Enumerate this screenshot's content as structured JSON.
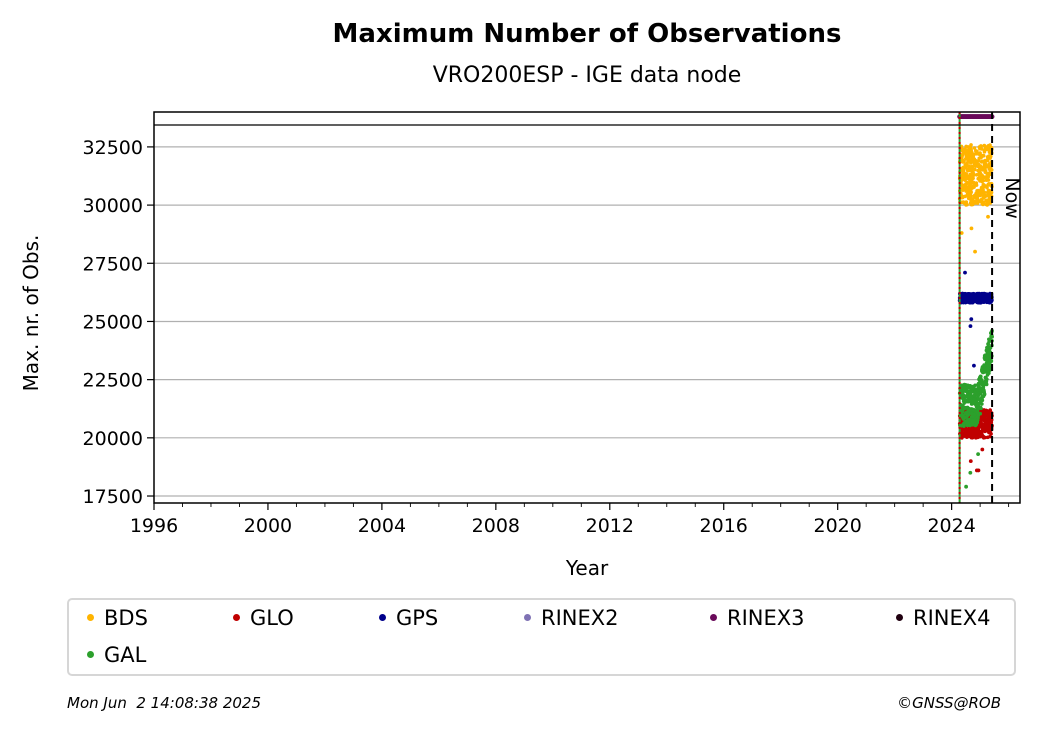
{
  "chart_data": {
    "type": "scatter",
    "title": "Maximum Number of Observations",
    "subtitle": "VRO200ESP - IGE data node",
    "xlabel": "Year",
    "ylabel": "Max. nr. of Obs.",
    "xlim": [
      1996,
      2026.4
    ],
    "ylim": [
      17200,
      34000
    ],
    "xticks": [
      1996,
      2000,
      2004,
      2008,
      2012,
      2016,
      2020,
      2024
    ],
    "yticks": [
      17500,
      20000,
      22500,
      25000,
      27500,
      30000,
      32500
    ],
    "grid": "horizontal",
    "legend_position": "below",
    "vlines": [
      {
        "x": 2024.28,
        "color": "#2ca02c",
        "style": "solid"
      },
      {
        "x": 2024.28,
        "color": "#c00000",
        "style": "dotted"
      },
      {
        "x": 2025.42,
        "color": "#000000",
        "style": "dashed",
        "label": "Now"
      }
    ],
    "x_start": 2024.28,
    "x_end": 2025.42,
    "series": [
      {
        "name": "BDS",
        "color": "#ffb400",
        "range": [
          30000,
          32600
        ],
        "outliers": [
          29500,
          29000,
          28800,
          28000
        ]
      },
      {
        "name": "GLO",
        "color": "#c00000",
        "range": [
          20000,
          21200
        ],
        "outliers": [
          19500,
          19000,
          18600,
          18600
        ]
      },
      {
        "name": "GPS",
        "color": "#00008b",
        "range": [
          25800,
          26200
        ],
        "outliers": [
          27100,
          25100,
          24800,
          23100
        ]
      },
      {
        "name": "RINEX2",
        "color": "#7f72b4",
        "range": [],
        "outliers": []
      },
      {
        "name": "RINEX3",
        "color": "#6a0a5a",
        "range": [
          33800,
          33800
        ],
        "outliers": []
      },
      {
        "name": "RINEX4",
        "color": "#200010",
        "range": [],
        "outliers": []
      },
      {
        "name": "GAL",
        "color": "#2ca02c",
        "range": [
          20500,
          22300
        ],
        "rise_to": 24800,
        "outliers": [
          19300,
          18500,
          17900
        ]
      }
    ]
  },
  "footer": {
    "date": "Mon Jun  2 14:08:38 2025",
    "copyright": "©GNSS@ROB"
  }
}
